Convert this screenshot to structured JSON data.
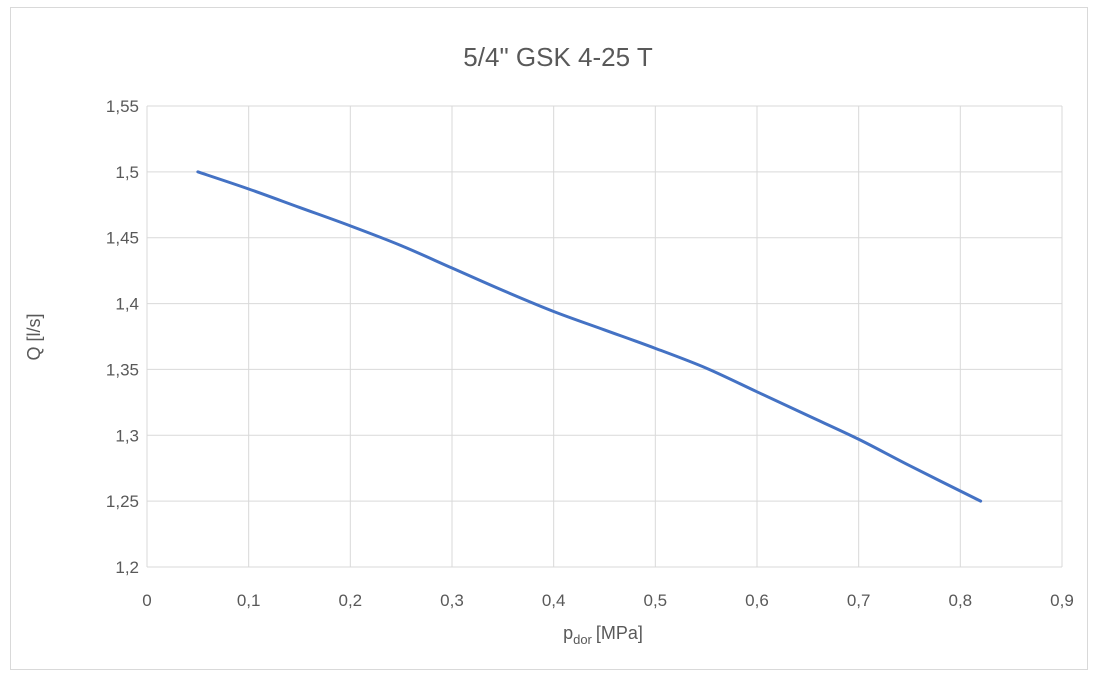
{
  "chart_data": {
    "type": "line",
    "title": "5/4\" GSK 4-25 T",
    "xlabel": "p",
    "xlabel_sub": "dor",
    "xlabel_unit": "[MPa]",
    "ylabel": "Q [l/s]",
    "xlim": [
      0,
      0.9
    ],
    "ylim": [
      1.2,
      1.55
    ],
    "x_ticks": [
      0,
      0.1,
      0.2,
      0.3,
      0.4,
      0.5,
      0.6,
      0.7,
      0.8,
      0.9
    ],
    "y_ticks": [
      1.2,
      1.25,
      1.3,
      1.35,
      1.4,
      1.45,
      1.5,
      1.55
    ],
    "x_tick_labels": [
      "0",
      "0,1",
      "0,2",
      "0,3",
      "0,4",
      "0,5",
      "0,6",
      "0,7",
      "0,8",
      "0,9"
    ],
    "y_tick_labels": [
      "1,2",
      "1,25",
      "1,3",
      "1,35",
      "1,4",
      "1,45",
      "1,5",
      "1,55"
    ],
    "grid": true,
    "series": [
      {
        "color": "#4472c4",
        "x": [
          0.05,
          0.1,
          0.15,
          0.2,
          0.25,
          0.3,
          0.35,
          0.4,
          0.45,
          0.5,
          0.55,
          0.6,
          0.65,
          0.7,
          0.75,
          0.82
        ],
        "y": [
          1.5,
          1.487,
          1.473,
          1.459,
          1.444,
          1.427,
          1.41,
          1.394,
          1.38,
          1.366,
          1.351,
          1.333,
          1.315,
          1.297,
          1.277,
          1.25
        ]
      }
    ]
  }
}
